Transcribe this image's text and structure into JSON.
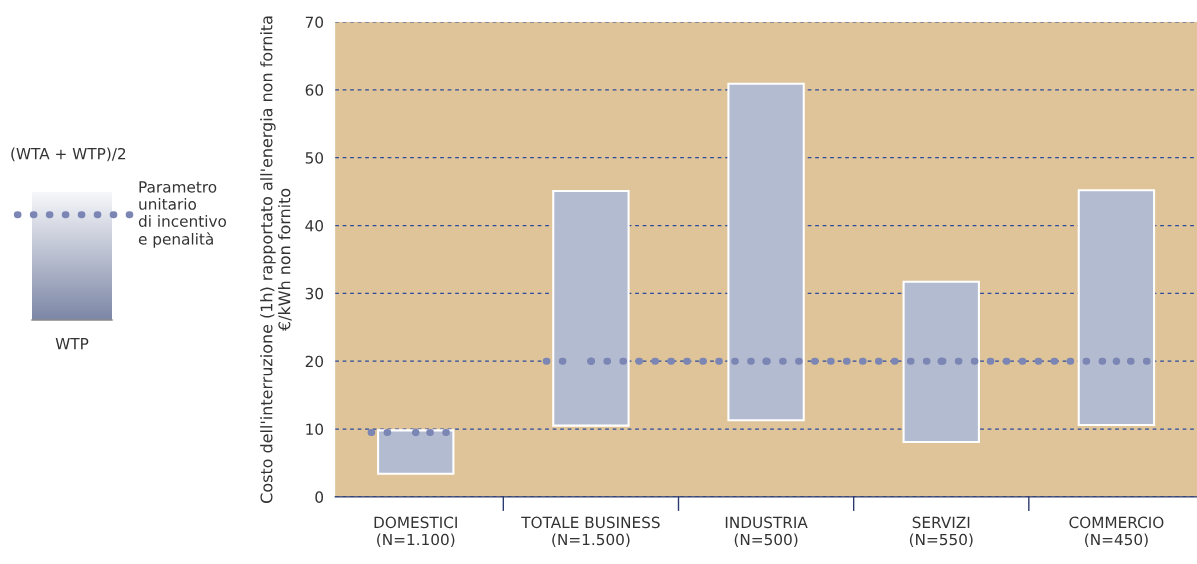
{
  "chart_data": {
    "type": "bar",
    "categories": [
      "DOMESTICI\n(N=1.100)",
      "TOTALE BUSINESS\n(N=1.500)",
      "INDUSTRIA\n(N=500)",
      "SERVIZI\n(N=550)",
      "COMMERCIO\n(N=450)"
    ],
    "ylabel": "Costo dell'interruzione (1h) rapportato all'energia non fornita\n€/kWh non fornito",
    "series": [
      {
        "color": "#b3bbd0",
        "base": [
          3.4,
          10.5,
          11.3,
          8.1,
          10.6
        ],
        "values": [
          6.4,
          34.6,
          49.6,
          23.6,
          34.6
        ]
      },
      {
        "type": "line",
        "name": "Parametro\nunitario\ndi incentivo\ne penalità",
        "color": "#7b86b4",
        "line_style": "dotted",
        "marker": "circle",
        "values": [
          null,
          20,
          20,
          20,
          20
        ]
      },
      {
        "type": "line",
        "color": "#7b86b4",
        "line_style": "dotted",
        "marker": "circle",
        "values": [
          9.5,
          null,
          null,
          null,
          null
        ]
      }
    ],
    "annotations": [
      "(WTA + WTP)/2",
      "WTP"
    ],
    "ylim": [
      0,
      70
    ],
    "yticks": [
      0,
      10,
      20,
      30,
      40,
      50,
      60,
      70
    ],
    "grid": "y",
    "legend": "left"
  }
}
